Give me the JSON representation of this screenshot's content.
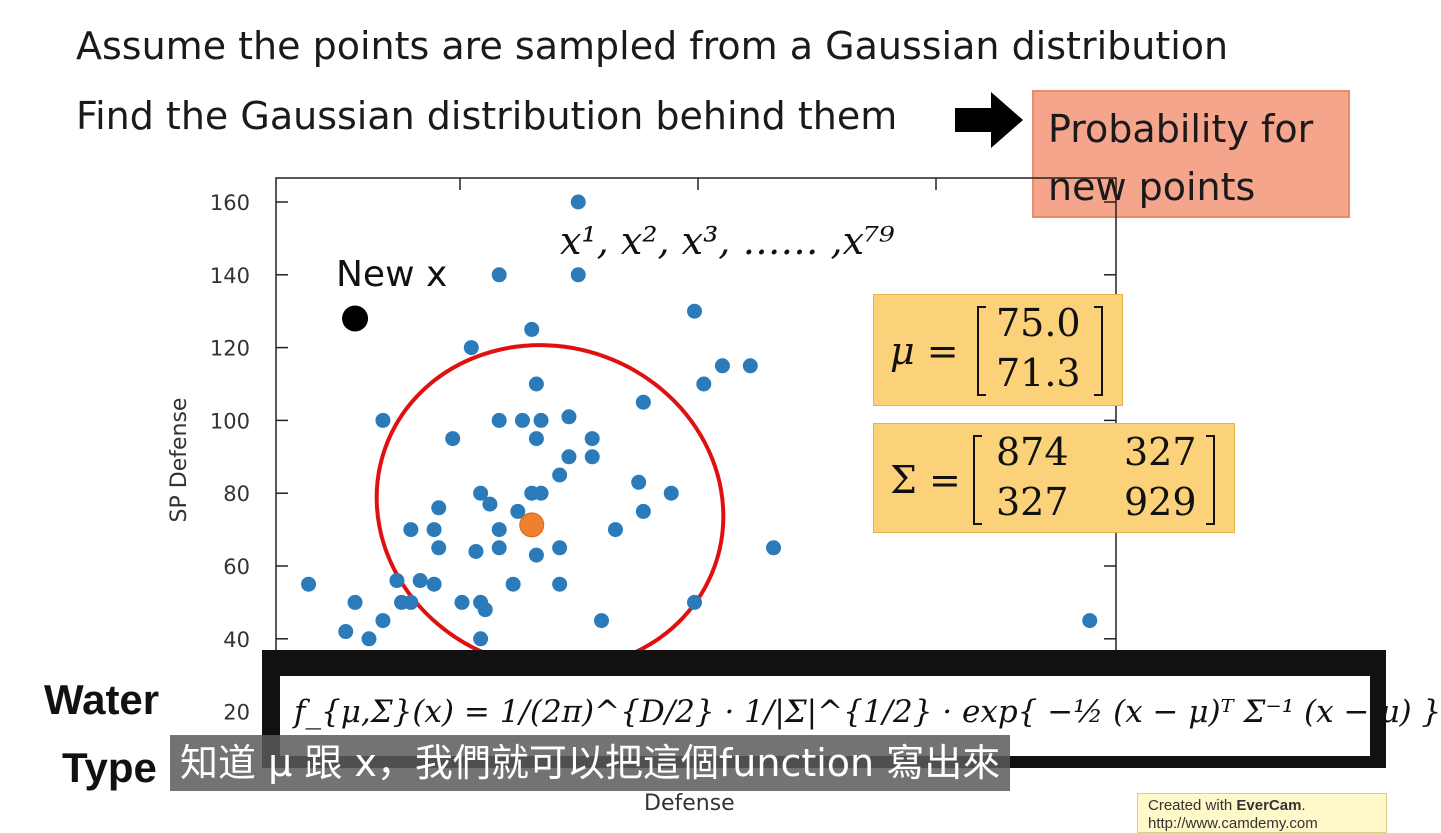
{
  "slide": {
    "line1": "Assume the points are sampled from a Gaussian distribution",
    "line2": "Find the Gaussian distribution behind them",
    "prob_box": "Probability for\nnew points",
    "sample_label": "x¹, x², x³, …… ,x⁷⁹",
    "new_x_label": "New x",
    "water_label": "Water",
    "type_label": "Type",
    "mu_text": "μ =",
    "mu_vals": [
      "75.0",
      "71.3"
    ],
    "sigma_text": "Σ =",
    "sigma_vals": [
      "874",
      "327",
      "327",
      "929"
    ],
    "formula": "f_{μ,Σ}(x) = 1/(2π)^{D/2} · 1/|Σ|^{1/2} · exp{ −½ (x − μ)ᵀ Σ⁻¹ (x − μ) }",
    "subtitle": "知道 μ 跟 x，我們就可以把這個function 寫出來",
    "watermark_line1_prefix": "Created with ",
    "watermark_brand": "EverCam",
    "watermark_line1_suffix": ".",
    "watermark_line2": "http://www.camdemy.com"
  },
  "colors": {
    "point": "#2b7bba",
    "mean": "#f08030",
    "ellipse": "#e01010",
    "new_point": "#000000",
    "prob_box": "#f5a58c",
    "param_box": "#fbd27a"
  },
  "chart_data": {
    "type": "scatter",
    "xlabel": "Defense",
    "ylabel": "SP Defense",
    "yticks": [
      20,
      40,
      60,
      80,
      100,
      120,
      140,
      160
    ],
    "ylim": [
      15,
      165
    ],
    "xlim": [
      20,
      200
    ],
    "mean": [
      75.0,
      71.3
    ],
    "new_x": [
      37,
      128
    ],
    "points": [
      [
        85,
        160
      ],
      [
        68,
        140
      ],
      [
        85,
        140
      ],
      [
        110,
        130
      ],
      [
        75,
        125
      ],
      [
        62,
        120
      ],
      [
        76,
        110
      ],
      [
        116,
        115
      ],
      [
        122,
        115
      ],
      [
        112,
        110
      ],
      [
        43,
        100
      ],
      [
        68,
        100
      ],
      [
        73,
        100
      ],
      [
        77,
        100
      ],
      [
        83,
        101
      ],
      [
        99,
        105
      ],
      [
        76,
        95
      ],
      [
        88,
        95
      ],
      [
        58,
        95
      ],
      [
        83,
        90
      ],
      [
        88,
        90
      ],
      [
        105,
        80
      ],
      [
        98,
        83
      ],
      [
        81,
        85
      ],
      [
        64,
        80
      ],
      [
        75,
        80
      ],
      [
        77,
        80
      ],
      [
        66,
        77
      ],
      [
        55,
        76
      ],
      [
        72,
        75
      ],
      [
        99,
        75
      ],
      [
        93,
        70
      ],
      [
        49,
        70
      ],
      [
        54,
        70
      ],
      [
        68,
        70
      ],
      [
        55,
        65
      ],
      [
        63,
        64
      ],
      [
        68,
        65
      ],
      [
        76,
        63
      ],
      [
        81,
        65
      ],
      [
        127,
        65
      ],
      [
        46,
        56
      ],
      [
        51,
        56
      ],
      [
        54,
        55
      ],
      [
        27,
        55
      ],
      [
        71,
        55
      ],
      [
        81,
        55
      ],
      [
        37,
        50
      ],
      [
        47,
        50
      ],
      [
        49,
        50
      ],
      [
        60,
        50
      ],
      [
        64,
        50
      ],
      [
        65,
        48
      ],
      [
        110,
        50
      ],
      [
        43,
        45
      ],
      [
        90,
        45
      ],
      [
        195,
        45
      ],
      [
        40,
        40
      ],
      [
        64,
        40
      ],
      [
        35,
        42
      ]
    ]
  }
}
